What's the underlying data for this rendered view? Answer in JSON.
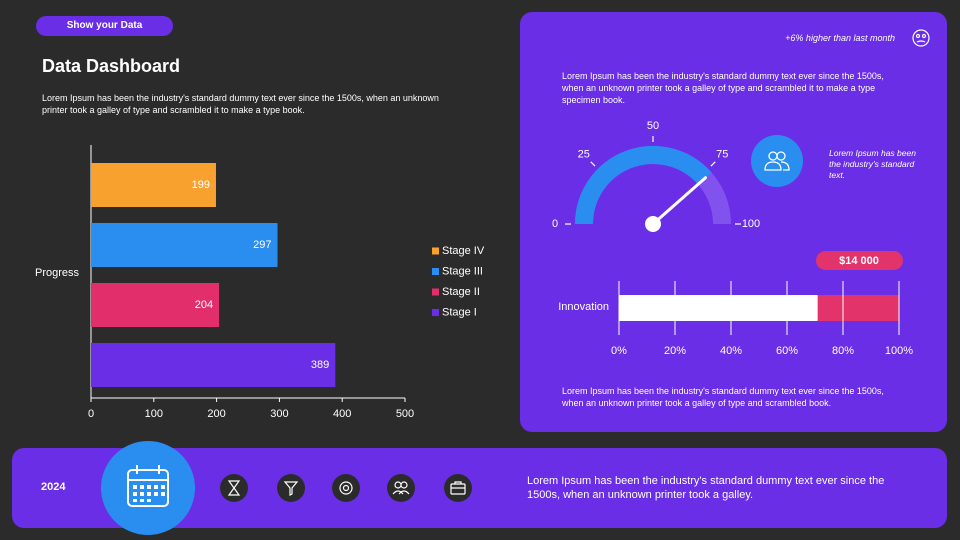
{
  "header": {
    "badge": "Show your Data",
    "title": "Data Dashboard",
    "description": "Lorem Ipsum has been the industry's standard dummy text ever since the 1500s, when an unknown printer took a galley of type and scrambled it to make a type book."
  },
  "panel": {
    "note": "+6% higher than last month",
    "intro": "Lorem Ipsum has been the industry's standard dummy text ever since the 1500s, when an unknown printer took a galley of type and scrambled it to make a type specimen book.",
    "side_text": "Lorem Ipsum has been the industry's standard text.",
    "outro": "Lorem Ipsum has been the industry's standard dummy text ever since the 1500s, when an unknown printer took a galley of type and scrambled book."
  },
  "footer": {
    "year": "2024",
    "text": "Lorem Ipsum has been the industry's standard dummy text ever since the 1500s, when an unknown printer took a galley."
  },
  "chart_data": [
    {
      "type": "bar",
      "orientation": "horizontal",
      "categories": [
        "Progress"
      ],
      "series": [
        {
          "name": "Stage IV",
          "color": "#f9a12e",
          "values": [
            199
          ]
        },
        {
          "name": "Stage III",
          "color": "#2a8df0",
          "values": [
            297
          ]
        },
        {
          "name": "Stage II",
          "color": "#e22f6b",
          "values": [
            204
          ]
        },
        {
          "name": "Stage I",
          "color": "#6a2ee6",
          "values": [
            389
          ]
        }
      ],
      "xlim": [
        0,
        500
      ],
      "xticks": [
        0,
        100,
        200,
        300,
        400,
        500
      ]
    },
    {
      "type": "gauge",
      "value": 77,
      "color": "#2a8df0",
      "ylim": [
        0,
        100
      ],
      "yticks": [
        0,
        25,
        50,
        75,
        100
      ]
    },
    {
      "type": "stacked_bar",
      "categories": [
        "Innovation"
      ],
      "series": [
        {
          "color": "#ffffff",
          "values": [
            71
          ]
        },
        {
          "color": "#e2336b",
          "values": [
            29
          ]
        }
      ],
      "annotation": "$14 000",
      "xlim": [
        0,
        100
      ],
      "xticks": [
        {
          "value": 0,
          "label": "0%"
        },
        {
          "value": 20,
          "label": "20%"
        },
        {
          "value": 40,
          "label": "40%"
        },
        {
          "value": 60,
          "label": "60%"
        },
        {
          "value": 80,
          "label": "80%"
        },
        {
          "value": 100,
          "label": "100%"
        }
      ],
      "grid": true
    }
  ]
}
